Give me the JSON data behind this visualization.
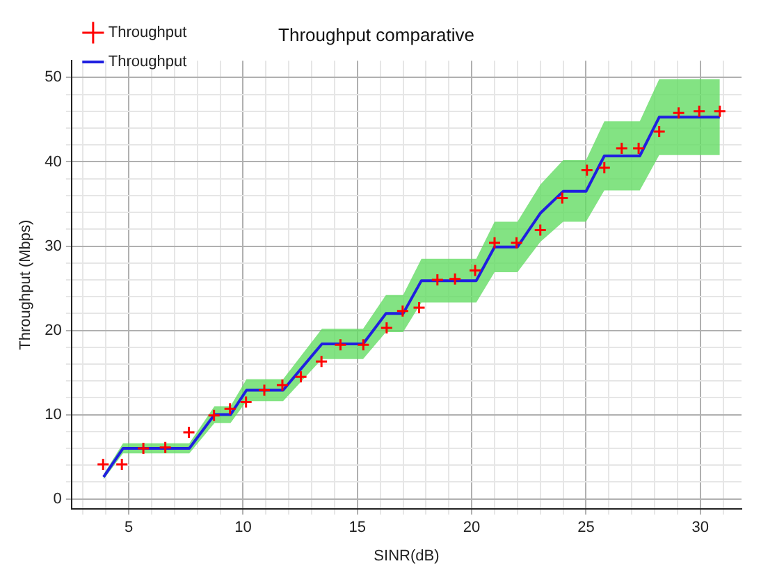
{
  "chart_data": {
    "type": "line",
    "title": "Throughput comparative",
    "xlabel": "SINR(dB)",
    "ylabel": "Throughput (Mbps)",
    "xlim": [
      2.5,
      31.8
    ],
    "ylim": [
      -1.2,
      52
    ],
    "xticks": [
      {
        "value": 3,
        "label": null
      },
      {
        "value": 4,
        "label": null
      },
      5,
      {
        "value": 6,
        "label": null
      },
      {
        "value": 7,
        "label": null
      },
      {
        "value": 8,
        "label": null
      },
      {
        "value": 9,
        "label": null
      },
      10,
      {
        "value": 11,
        "label": null
      },
      {
        "value": 12,
        "label": null
      },
      {
        "value": 13,
        "label": null
      },
      {
        "value": 14,
        "label": null
      },
      15,
      {
        "value": 16,
        "label": null
      },
      {
        "value": 17,
        "label": null
      },
      {
        "value": 18,
        "label": null
      },
      {
        "value": 19,
        "label": null
      },
      20,
      {
        "value": 21,
        "label": null
      },
      {
        "value": 22,
        "label": null
      },
      {
        "value": 23,
        "label": null
      },
      {
        "value": 24,
        "label": null
      },
      25,
      {
        "value": 26,
        "label": null
      },
      {
        "value": 27,
        "label": null
      },
      {
        "value": 28,
        "label": null
      },
      {
        "value": 29,
        "label": null
      },
      30,
      {
        "value": 31,
        "label": null
      }
    ],
    "yticks": [
      0,
      {
        "value": 2,
        "label": null
      },
      {
        "value": 4,
        "label": null
      },
      {
        "value": 6,
        "label": null
      },
      {
        "value": 8,
        "label": null
      },
      10,
      {
        "value": 12,
        "label": null
      },
      {
        "value": 14,
        "label": null
      },
      {
        "value": 16,
        "label": null
      },
      {
        "value": 18,
        "label": null
      },
      20,
      {
        "value": 22,
        "label": null
      },
      {
        "value": 24,
        "label": null
      },
      {
        "value": 26,
        "label": null
      },
      {
        "value": 28,
        "label": null
      },
      30,
      {
        "value": 32,
        "label": null
      },
      {
        "value": 34,
        "label": null
      },
      {
        "value": 36,
        "label": null
      },
      {
        "value": 38,
        "label": null
      },
      40,
      {
        "value": 42,
        "label": null
      },
      {
        "value": 44,
        "label": null
      },
      {
        "value": 46,
        "label": null
      },
      {
        "value": 48,
        "label": null
      },
      50
    ],
    "grid": true,
    "legend": "top left",
    "series": [
      {
        "name": "Throughput",
        "type": "line",
        "color": "#1f1fe0",
        "line_style": "solid",
        "marker": "none",
        "x": [
          3.9,
          4.75,
          7.65,
          8.75,
          9.45,
          10.15,
          11.75,
          13.45,
          15.25,
          16.25,
          17.0,
          17.8,
          20.2,
          21.0,
          22.0,
          23.0,
          24.0,
          25.0,
          25.8,
          27.35,
          28.2,
          30.85
        ],
        "values": [
          2.6,
          6.0,
          6.0,
          10.0,
          10.0,
          12.9,
          12.9,
          18.4,
          18.4,
          22.0,
          22.0,
          25.9,
          25.9,
          29.9,
          29.9,
          33.9,
          36.5,
          36.5,
          40.7,
          40.7,
          45.3,
          45.3
        ],
        "lower": [
          2.3,
          5.4,
          5.4,
          9.0,
          9.0,
          11.6,
          11.6,
          16.6,
          16.6,
          19.8,
          19.8,
          23.3,
          23.3,
          26.9,
          26.9,
          30.5,
          32.9,
          32.9,
          36.6,
          36.6,
          40.8,
          40.8
        ],
        "upper": [
          2.9,
          6.6,
          6.6,
          11.0,
          11.0,
          14.2,
          14.2,
          20.2,
          20.2,
          24.2,
          24.2,
          28.5,
          28.5,
          32.9,
          32.9,
          37.3,
          40.2,
          40.2,
          44.8,
          44.8,
          49.8,
          49.8
        ]
      },
      {
        "name": "Throughput",
        "type": "scatter",
        "color": "#ff0000",
        "marker": "cross",
        "x": [
          3.88,
          4.7,
          5.64,
          6.6,
          7.63,
          8.73,
          9.43,
          10.13,
          10.93,
          11.72,
          12.53,
          13.43,
          14.26,
          15.26,
          16.28,
          16.98,
          17.7,
          18.5,
          19.27,
          20.15,
          21.0,
          21.96,
          23.0,
          23.96,
          25.04,
          25.8,
          26.56,
          27.3,
          28.2,
          29.05,
          29.95,
          30.85
        ],
        "values": [
          4.1,
          4.1,
          6.0,
          6.1,
          7.9,
          9.9,
          10.7,
          11.5,
          12.9,
          13.5,
          14.5,
          16.3,
          18.3,
          18.3,
          20.3,
          22.3,
          22.7,
          26.0,
          26.1,
          27.1,
          30.4,
          30.4,
          31.9,
          35.7,
          39.0,
          39.3,
          41.6,
          41.6,
          43.6,
          45.8,
          46.0,
          46.0
        ]
      }
    ]
  }
}
